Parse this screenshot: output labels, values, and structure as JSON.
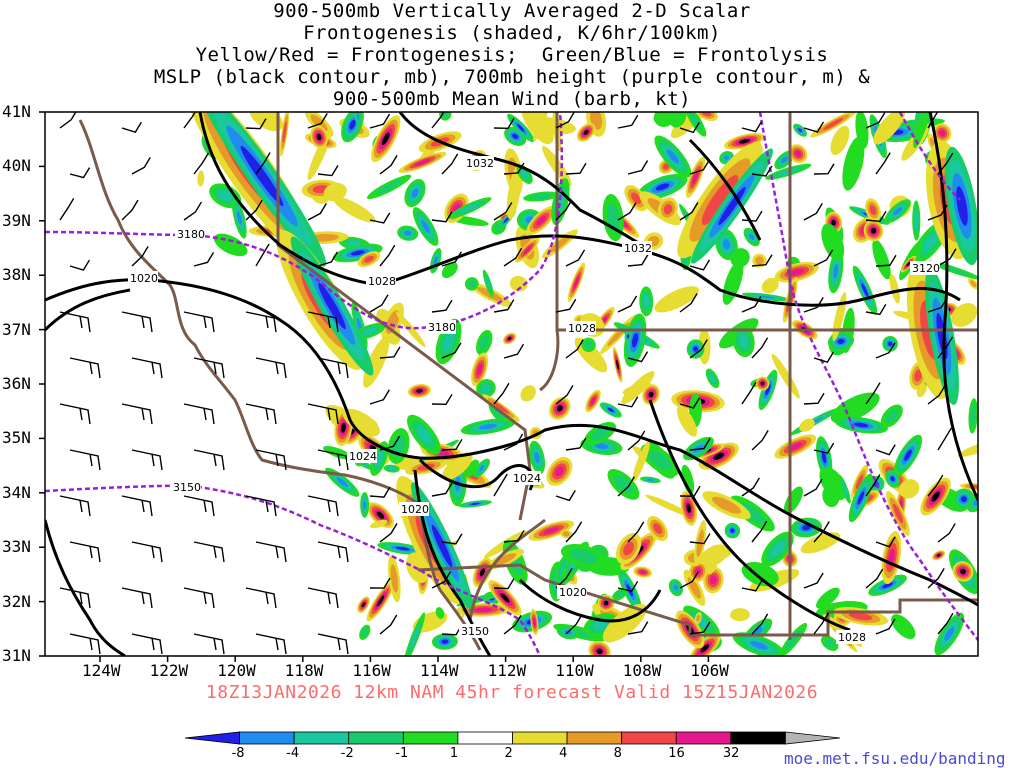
{
  "title": {
    "line1": "900-500mb Vertically Averaged 2-D Scalar",
    "line2": "Frontogenesis (shaded, K/6hr/100km)",
    "line3": "Yellow/Red = Frontogenesis;  Green/Blue = Frontolysis",
    "line4": "MSLP (black contour, mb), 700mb height (purple contour, m) &",
    "line5": "900-500mb Mean Wind (barb, kt)"
  },
  "axes": {
    "lat_labels": [
      "41N",
      "40N",
      "39N",
      "38N",
      "37N",
      "36N",
      "35N",
      "34N",
      "33N",
      "32N",
      "31N"
    ],
    "lon_labels": [
      "124W",
      "122W",
      "120W",
      "118W",
      "116W",
      "114W",
      "112W",
      "110W",
      "108W",
      "106W"
    ]
  },
  "contour_labels": {
    "mslp": [
      "1032",
      "1032",
      "1028",
      "1028",
      "1020",
      "1024",
      "1024",
      "1020",
      "1020",
      "1028"
    ],
    "height": [
      "3180",
      "3180",
      "3150",
      "3150",
      "3120"
    ]
  },
  "valid_line": "18Z13JAN2026 12km NAM 45hr forecast Valid 15Z15JAN2026",
  "credit": "moe.met.fsu.edu/banding",
  "colorbar": {
    "labels": [
      "-8",
      "-4",
      "-2",
      "-1",
      "1",
      "2",
      "4",
      "8",
      "16",
      "32"
    ],
    "colors": [
      "#2020e6",
      "#1f8cf0",
      "#19c8a0",
      "#18cc6c",
      "#22dc22",
      "#ffffff",
      "#e6dc32",
      "#e69b28",
      "#f04646",
      "#e6198c",
      "#000000",
      "#b4b4b4"
    ]
  },
  "legend": {
    "shading_units": "K/6hr/100km",
    "frontogenesis_colors": "Yellow/Red",
    "frontolysis_colors": "Green/Blue"
  },
  "colors": {
    "mslp_contour": "#000000",
    "height_contour": "#9b1fd6",
    "borders": "#7a5a4a",
    "valid_text": "#ff6b6b",
    "credit_text": "#4a4ad0"
  }
}
